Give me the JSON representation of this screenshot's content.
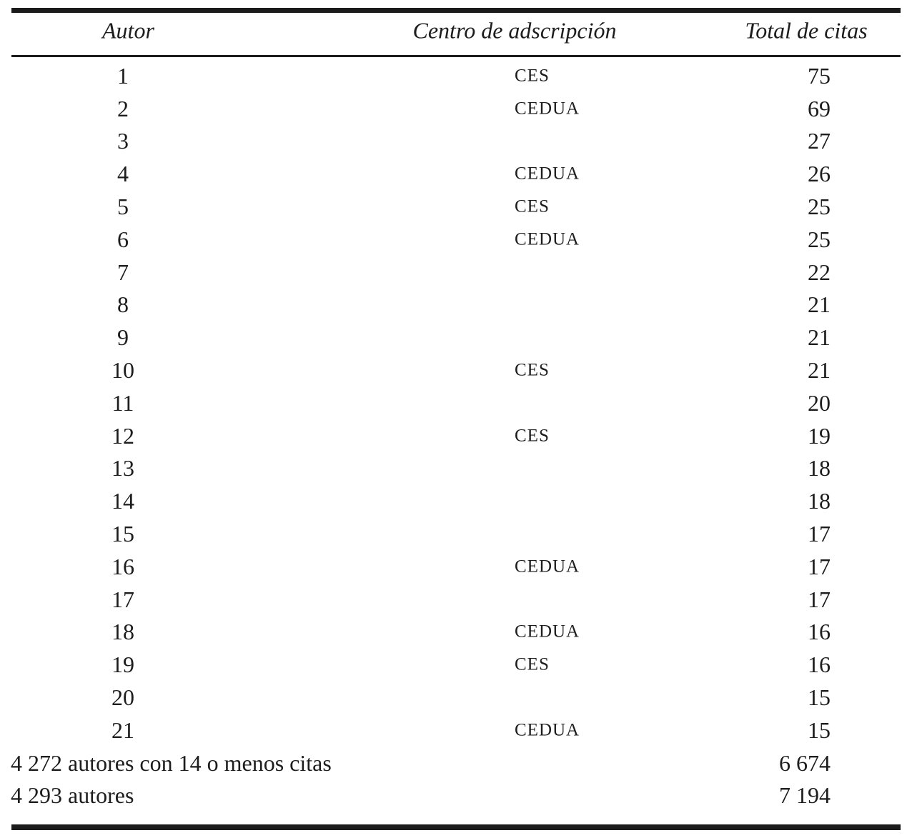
{
  "table": {
    "columns": {
      "autor": "Autor",
      "centro": "Centro de adscripción",
      "citas": "Total de citas"
    },
    "rows": [
      {
        "autor": "1",
        "centro": "CES",
        "citas": "75"
      },
      {
        "autor": "2",
        "centro": "CEDUA",
        "citas": "69"
      },
      {
        "autor": "3",
        "centro": "",
        "citas": "27"
      },
      {
        "autor": "4",
        "centro": "CEDUA",
        "citas": "26"
      },
      {
        "autor": "5",
        "centro": "CES",
        "citas": "25"
      },
      {
        "autor": "6",
        "centro": "CEDUA",
        "citas": "25"
      },
      {
        "autor": "7",
        "centro": "",
        "citas": "22"
      },
      {
        "autor": "8",
        "centro": "",
        "citas": "21"
      },
      {
        "autor": "9",
        "centro": "",
        "citas": "21"
      },
      {
        "autor": "10",
        "centro": "CES",
        "citas": "21"
      },
      {
        "autor": "11",
        "centro": "",
        "citas": "20"
      },
      {
        "autor": "12",
        "centro": "CES",
        "citas": "19"
      },
      {
        "autor": "13",
        "centro": "",
        "citas": "18"
      },
      {
        "autor": "14",
        "centro": "",
        "citas": "18"
      },
      {
        "autor": "15",
        "centro": "",
        "citas": "17"
      },
      {
        "autor": "16",
        "centro": "CEDUA",
        "citas": "17"
      },
      {
        "autor": "17",
        "centro": "",
        "citas": "17"
      },
      {
        "autor": "18",
        "centro": "CEDUA",
        "citas": "16"
      },
      {
        "autor": "19",
        "centro": "CES",
        "citas": "16"
      },
      {
        "autor": "20",
        "centro": "",
        "citas": "15"
      },
      {
        "autor": "21",
        "centro": "CEDUA",
        "citas": "15"
      }
    ],
    "summary_rows": [
      {
        "label": "4 272 autores con 14 o menos citas",
        "citas": "6 674"
      },
      {
        "label": "4 293 autores",
        "citas": "7 194"
      }
    ]
  }
}
